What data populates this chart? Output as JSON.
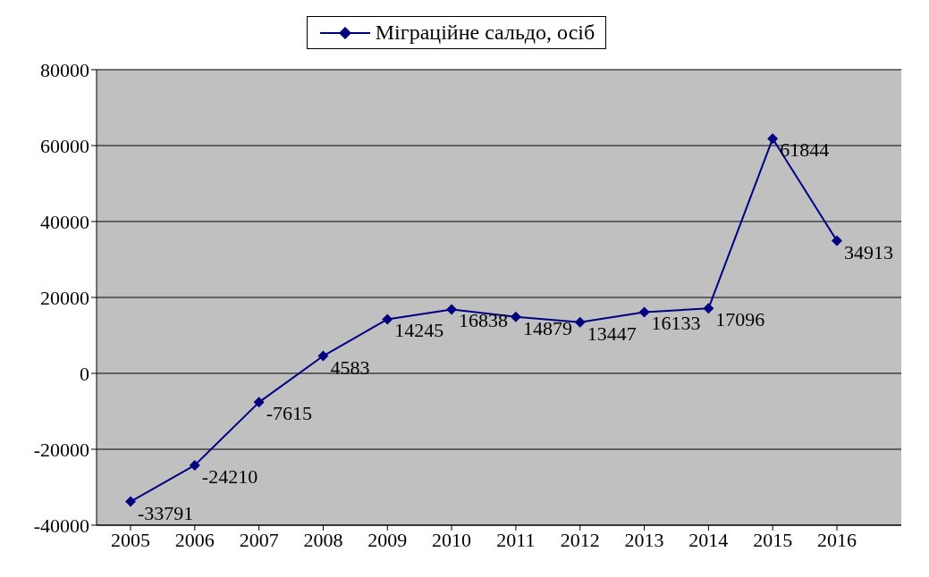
{
  "chart_data": {
    "type": "line",
    "categories": [
      "2005",
      "2006",
      "2007",
      "2008",
      "2009",
      "2010",
      "2011",
      "2012",
      "2013",
      "2014",
      "2015",
      "2016"
    ],
    "series": [
      {
        "name": "Міграційне сальдо, осіб",
        "color": "#000080",
        "values": [
          -33791,
          -24210,
          -7615,
          4583,
          14245,
          16838,
          14879,
          13447,
          16133,
          17096,
          61844,
          34913
        ]
      }
    ],
    "ylim": [
      -40000,
      80000
    ],
    "yticks": [
      -40000,
      -20000,
      0,
      20000,
      40000,
      60000,
      80000
    ],
    "grid": "y",
    "legend": "top",
    "marker": "diamond",
    "line_style": "solid",
    "data_labels": true
  }
}
